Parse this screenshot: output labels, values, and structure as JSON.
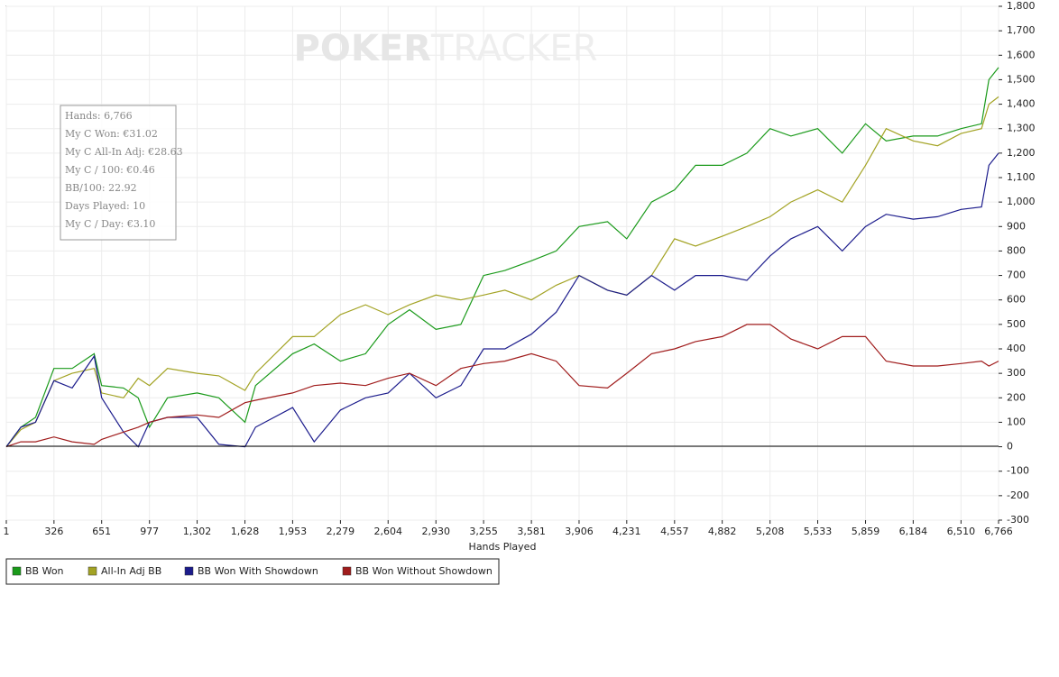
{
  "chart_data": {
    "type": "line",
    "watermark": {
      "bold": "POKER",
      "light": "TRACKER"
    },
    "xlabel": "Hands Played",
    "stats": [
      "Hands: 6,766",
      "My C Won: €31.02",
      "My C All-In Adj: €28.63",
      "My C / 100: €0.46",
      "BB/100: 22.92",
      "Days Played: 10",
      "My C / Day: €3.10"
    ],
    "x": [
      1,
      100,
      200,
      326,
      450,
      600,
      651,
      800,
      900,
      977,
      1100,
      1302,
      1450,
      1628,
      1700,
      1953,
      2100,
      2279,
      2450,
      2604,
      2750,
      2930,
      3100,
      3255,
      3400,
      3581,
      3750,
      3906,
      4100,
      4231,
      4400,
      4557,
      4700,
      4882,
      5050,
      5208,
      5350,
      5533,
      5700,
      5859,
      6000,
      6184,
      6350,
      6510,
      6650,
      6700,
      6766
    ],
    "series": [
      {
        "name": "BB Won",
        "color": "#1a9a1a",
        "values": [
          0,
          80,
          120,
          320,
          320,
          380,
          250,
          240,
          200,
          80,
          200,
          220,
          200,
          100,
          250,
          380,
          420,
          350,
          380,
          500,
          560,
          480,
          500,
          700,
          720,
          760,
          800,
          900,
          920,
          850,
          1000,
          1050,
          1150,
          1150,
          1200,
          1300,
          1270,
          1300,
          1200,
          1320,
          1250,
          1270,
          1270,
          1300,
          1320,
          1500,
          1550
        ]
      },
      {
        "name": "All-In Adj BB",
        "color": "#a3a324",
        "values": [
          0,
          70,
          100,
          270,
          300,
          320,
          220,
          200,
          280,
          250,
          320,
          300,
          290,
          230,
          300,
          450,
          450,
          540,
          580,
          540,
          580,
          620,
          600,
          620,
          640,
          600,
          660,
          700,
          640,
          620,
          700,
          850,
          820,
          860,
          900,
          940,
          1000,
          1050,
          1000,
          1150,
          1300,
          1250,
          1230,
          1280,
          1300,
          1400,
          1430
        ]
      },
      {
        "name": "BB Won With Showdown",
        "color": "#1c1c8c",
        "values": [
          0,
          80,
          100,
          270,
          240,
          370,
          200,
          60,
          0,
          100,
          120,
          120,
          10,
          0,
          80,
          160,
          20,
          150,
          200,
          220,
          300,
          200,
          250,
          400,
          400,
          460,
          550,
          700,
          640,
          620,
          700,
          640,
          700,
          700,
          680,
          780,
          850,
          900,
          800,
          900,
          950,
          930,
          940,
          970,
          980,
          1150,
          1200
        ]
      },
      {
        "name": "BB Won Without Showdown",
        "color": "#a01c1c",
        "values": [
          0,
          20,
          20,
          40,
          20,
          10,
          30,
          60,
          80,
          100,
          120,
          130,
          120,
          180,
          190,
          220,
          250,
          260,
          250,
          280,
          300,
          250,
          320,
          340,
          350,
          380,
          350,
          250,
          240,
          300,
          380,
          400,
          430,
          450,
          500,
          500,
          440,
          400,
          450,
          450,
          350,
          330,
          330,
          340,
          350,
          330,
          350
        ]
      }
    ],
    "xlim": [
      1,
      6766
    ],
    "xticks": [
      1,
      326,
      651,
      977,
      {
        "value": 1302,
        "label": "1,302"
      },
      {
        "value": 1628,
        "label": "1,628"
      },
      {
        "value": 1953,
        "label": "1,953"
      },
      {
        "value": 2279,
        "label": "2,279"
      },
      {
        "value": 2604,
        "label": "2,604"
      },
      {
        "value": 2930,
        "label": "2,930"
      },
      {
        "value": 3255,
        "label": "3,255"
      },
      {
        "value": 3581,
        "label": "3,581"
      },
      {
        "value": 3906,
        "label": "3,906"
      },
      {
        "value": 4231,
        "label": "4,231"
      },
      {
        "value": 4557,
        "label": "4,557"
      },
      {
        "value": 4882,
        "label": "4,882"
      },
      {
        "value": 5208,
        "label": "5,208"
      },
      {
        "value": 5533,
        "label": "5,533"
      },
      {
        "value": 5859,
        "label": "5,859"
      },
      {
        "value": 6184,
        "label": "6,184"
      },
      {
        "value": 6510,
        "label": "6,510"
      },
      {
        "value": 6766,
        "label": "6,766"
      }
    ],
    "ylim": [
      -300,
      1800
    ],
    "yticks": [
      -300,
      -200,
      -100,
      0,
      100,
      200,
      300,
      400,
      500,
      600,
      700,
      800,
      900,
      {
        "value": 1000,
        "label": "1,000"
      },
      {
        "value": 1100,
        "label": "1,100"
      },
      {
        "value": 1200,
        "label": "1,200"
      },
      {
        "value": 1300,
        "label": "1,300"
      },
      {
        "value": 1400,
        "label": "1,400"
      },
      {
        "value": 1500,
        "label": "1,500"
      },
      {
        "value": 1600,
        "label": "1,600"
      },
      {
        "value": 1700,
        "label": "1,700"
      },
      {
        "value": 1800,
        "label": "1,800"
      }
    ],
    "grid": true
  }
}
